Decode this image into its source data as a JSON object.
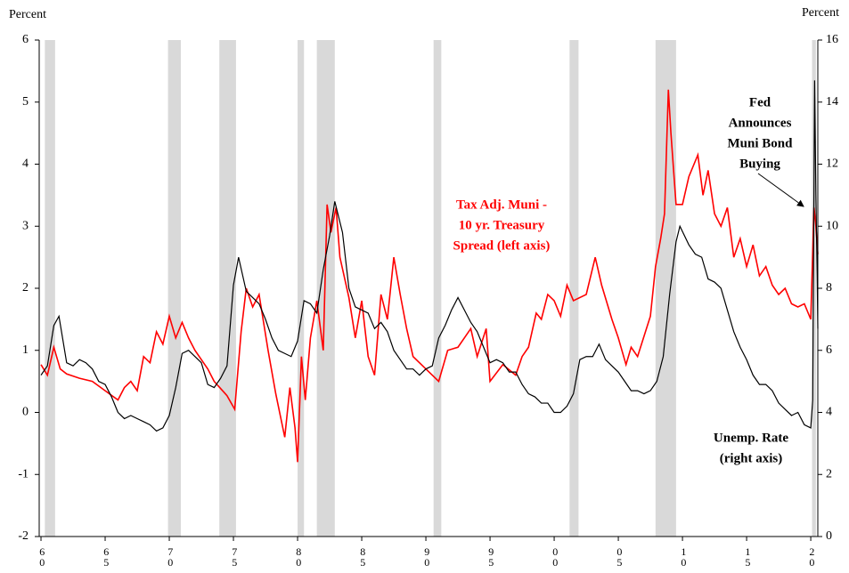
{
  "chart_data": {
    "type": "line",
    "y_label": "Percent",
    "y2_label": "Percent",
    "xlim": [
      1959.86,
      2020.55
    ],
    "xticks": [
      {
        "value": 1960,
        "label": "60"
      },
      {
        "value": 1965,
        "label": "65"
      },
      {
        "value": 1970,
        "label": "70"
      },
      {
        "value": 1975,
        "label": "75"
      },
      {
        "value": 1980,
        "label": "80"
      },
      {
        "value": 1985,
        "label": "85"
      },
      {
        "value": 1990,
        "label": "90"
      },
      {
        "value": 1995,
        "label": "95"
      },
      {
        "value": 2000,
        "label": "00"
      },
      {
        "value": 2005,
        "label": "05"
      },
      {
        "value": 2010,
        "label": "10"
      },
      {
        "value": 2015,
        "label": "15"
      },
      {
        "value": 2020,
        "label": "20"
      }
    ],
    "ylim": [
      -2,
      6
    ],
    "yticks": [
      -2,
      -1,
      0,
      1,
      2,
      3,
      4,
      5,
      6
    ],
    "y2lim": [
      0,
      16
    ],
    "y2ticks": [
      0,
      2,
      4,
      6,
      8,
      10,
      12,
      14,
      16
    ],
    "shaded_periods": [
      [
        1960.3,
        1961.1
      ],
      [
        1969.9,
        1970.9
      ],
      [
        1973.9,
        1975.2
      ],
      [
        1980.0,
        1980.5
      ],
      [
        1981.5,
        1982.9
      ],
      [
        1990.6,
        1991.2
      ],
      [
        2001.2,
        2001.9
      ],
      [
        2007.9,
        2009.5
      ],
      [
        2020.1,
        2020.4
      ]
    ],
    "shade_color": "#d9d9d9",
    "series": [
      {
        "color": "#ff0000",
        "axis": "y",
        "x": [
          1960,
          1960.5,
          1961,
          1961.5,
          1962,
          1963,
          1964,
          1965,
          1966,
          1966.5,
          1967,
          1967.5,
          1968,
          1968.5,
          1969,
          1969.5,
          1970,
          1970.5,
          1971,
          1971.5,
          1972,
          1973,
          1973.5,
          1974.5,
          1975.1,
          1975.6,
          1976,
          1976.5,
          1977,
          1977.7,
          1978.3,
          1979,
          1979.4,
          1979.8,
          1980,
          1980.3,
          1980.6,
          1981,
          1981.5,
          1982,
          1982.3,
          1982.6,
          1983,
          1983.3,
          1984,
          1984.5,
          1985,
          1985.5,
          1986,
          1986.5,
          1987,
          1987.5,
          1988,
          1988.5,
          1989,
          1990,
          1991,
          1991.7,
          1992.5,
          1993,
          1993.5,
          1994,
          1994.7,
          1995,
          1996,
          1997,
          1997.5,
          1998,
          1998.6,
          1999,
          1999.5,
          2000,
          2000.5,
          2001,
          2001.5,
          2002.5,
          2003.2,
          2003.7,
          2004.5,
          2005,
          2005.6,
          2006,
          2006.5,
          2007.5,
          2007.9,
          2008.3,
          2008.6,
          2008.9,
          2009.1,
          2009.5,
          2010,
          2010.5,
          2011.2,
          2011.6,
          2012,
          2012.5,
          2013,
          2013.5,
          2014,
          2014.5,
          2015,
          2015.5,
          2016,
          2016.5,
          2017,
          2017.5,
          2018,
          2018.5,
          2019,
          2019.5,
          2020,
          2020.25,
          2020.4,
          2020.55
        ],
        "values": [
          0.77,
          0.6,
          1.05,
          0.7,
          0.62,
          0.55,
          0.5,
          0.35,
          0.2,
          0.4,
          0.5,
          0.35,
          0.9,
          0.8,
          1.3,
          1.1,
          1.55,
          1.2,
          1.45,
          1.2,
          1.0,
          0.7,
          0.5,
          0.27,
          0.05,
          1.3,
          2.0,
          1.7,
          1.9,
          1.0,
          0.3,
          -0.4,
          0.4,
          -0.25,
          -0.8,
          0.9,
          0.2,
          1.2,
          1.8,
          1.0,
          3.35,
          2.9,
          3.3,
          2.5,
          1.85,
          1.2,
          1.8,
          0.9,
          0.6,
          1.9,
          1.5,
          2.5,
          1.9,
          1.35,
          0.9,
          0.7,
          0.5,
          1.0,
          1.05,
          1.2,
          1.35,
          0.9,
          1.35,
          0.5,
          0.77,
          0.6,
          0.9,
          1.05,
          1.6,
          1.5,
          1.9,
          1.8,
          1.55,
          2.05,
          1.8,
          1.9,
          2.5,
          2.05,
          1.5,
          1.2,
          0.77,
          1.05,
          0.9,
          1.55,
          2.35,
          2.8,
          3.2,
          5.2,
          4.5,
          3.35,
          3.35,
          3.8,
          4.15,
          3.5,
          3.9,
          3.2,
          3.0,
          3.3,
          2.5,
          2.8,
          2.35,
          2.7,
          2.2,
          2.35,
          2.05,
          1.9,
          2.0,
          1.75,
          1.7,
          1.75,
          1.5,
          3.3,
          3.0,
          2.55
        ]
      },
      {
        "color": "#000000",
        "axis": "y2",
        "x": [
          1960,
          1960.5,
          1961,
          1961.4,
          1962,
          1962.5,
          1963,
          1963.5,
          1964,
          1964.5,
          1965,
          1965.5,
          1966,
          1966.5,
          1967,
          1967.5,
          1968,
          1968.5,
          1969,
          1969.5,
          1970,
          1970.5,
          1971,
          1971.5,
          1972,
          1972.5,
          1973,
          1973.5,
          1974,
          1974.5,
          1975,
          1975.4,
          1976,
          1976.5,
          1977,
          1977.5,
          1978,
          1978.5,
          1979,
          1979.5,
          1980,
          1980.5,
          1981,
          1981.5,
          1982,
          1982.5,
          1982.9,
          1983.5,
          1984,
          1984.5,
          1985,
          1985.5,
          1986,
          1986.5,
          1987,
          1987.5,
          1988,
          1988.5,
          1989,
          1989.5,
          1990,
          1990.5,
          1991,
          1991.5,
          1992,
          1992.5,
          1993,
          1993.5,
          1994,
          1994.5,
          1995,
          1995.5,
          1996,
          1996.5,
          1997,
          1997.5,
          1998,
          1998.5,
          1999,
          1999.5,
          2000,
          2000.5,
          2001,
          2001.5,
          2002,
          2002.5,
          2003,
          2003.5,
          2004,
          2004.5,
          2005,
          2005.5,
          2006,
          2006.5,
          2007,
          2007.5,
          2008,
          2008.5,
          2009,
          2009.5,
          2009.8,
          2010.5,
          2011,
          2011.5,
          2012,
          2012.5,
          2013,
          2013.5,
          2014,
          2014.5,
          2015,
          2015.5,
          2016,
          2016.5,
          2017,
          2017.5,
          2018,
          2018.5,
          2019,
          2019.5,
          2020,
          2020.15,
          2020.3,
          2020.4,
          2020.5,
          2020.55
        ],
        "values": [
          5.2,
          5.5,
          6.8,
          7.1,
          5.6,
          5.5,
          5.7,
          5.6,
          5.4,
          5.0,
          4.9,
          4.5,
          4.0,
          3.8,
          3.9,
          3.8,
          3.7,
          3.6,
          3.4,
          3.5,
          3.9,
          4.8,
          5.9,
          6.0,
          5.8,
          5.6,
          4.9,
          4.8,
          5.1,
          5.5,
          8.1,
          9.0,
          7.9,
          7.7,
          7.5,
          7.0,
          6.4,
          6.0,
          5.9,
          5.8,
          6.3,
          7.6,
          7.5,
          7.2,
          8.6,
          9.7,
          10.8,
          9.8,
          8.0,
          7.4,
          7.3,
          7.2,
          6.7,
          6.9,
          6.6,
          6.0,
          5.7,
          5.4,
          5.4,
          5.2,
          5.4,
          5.5,
          6.4,
          6.8,
          7.3,
          7.7,
          7.3,
          6.9,
          6.6,
          6.1,
          5.6,
          5.7,
          5.6,
          5.3,
          5.3,
          4.9,
          4.6,
          4.5,
          4.3,
          4.3,
          4.0,
          4.0,
          4.2,
          4.6,
          5.7,
          5.8,
          5.8,
          6.2,
          5.7,
          5.5,
          5.3,
          5.0,
          4.7,
          4.7,
          4.6,
          4.7,
          5.0,
          5.8,
          7.8,
          9.5,
          10.0,
          9.4,
          9.1,
          9.0,
          8.3,
          8.2,
          8.0,
          7.3,
          6.6,
          6.1,
          5.7,
          5.2,
          4.9,
          4.9,
          4.7,
          4.3,
          4.1,
          3.9,
          4.0,
          3.6,
          3.5,
          4.4,
          14.7,
          11.0,
          8.4,
          6.7
        ]
      }
    ],
    "annotations": [
      {
        "lines": [
          "Tax Adj. Muni -",
          "10 yr. Treasury",
          "Spread (left axis)"
        ],
        "color": "#ff0000"
      },
      {
        "lines": [
          "Fed",
          "Announces",
          "Muni Bond",
          "Buying"
        ],
        "color": "#000000"
      },
      {
        "lines": [
          "Unemp. Rate",
          "(right axis)"
        ],
        "color": "#000000"
      }
    ]
  }
}
